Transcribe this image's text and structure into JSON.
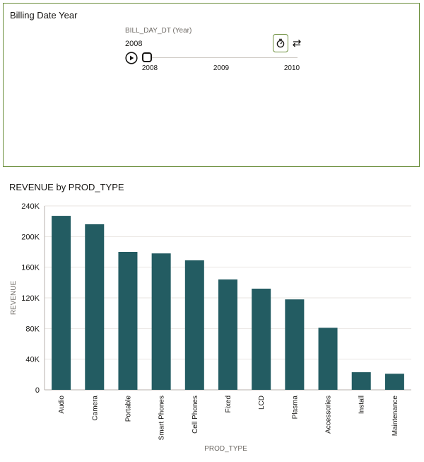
{
  "filter_panel": {
    "title": "Billing Date Year",
    "slider_label": "BILL_DAY_DT (Year)",
    "current_value": "2008",
    "ticks": [
      "2008",
      "2009",
      "2010"
    ],
    "selected_fraction": 0
  },
  "chart_title": "REVENUE by PROD_TYPE",
  "chart_data": {
    "type": "bar",
    "title": "REVENUE by PROD_TYPE",
    "xlabel": "PROD_TYPE",
    "ylabel": "REVENUE",
    "categories": [
      "Audio",
      "Camera",
      "Portable",
      "Smart Phones",
      "Cell Phones",
      "Fixed",
      "LCD",
      "Plasma",
      "Accessories",
      "Install",
      "Maintenance"
    ],
    "values": [
      227000,
      216000,
      180000,
      178000,
      169000,
      144000,
      132000,
      118000,
      81000,
      23000,
      21000
    ],
    "ylim": [
      0,
      240000
    ],
    "yticks": [
      {
        "value": 0,
        "label": "0"
      },
      {
        "value": 40000,
        "label": "40K"
      },
      {
        "value": 80000,
        "label": "80K"
      },
      {
        "value": 120000,
        "label": "120K"
      },
      {
        "value": 160000,
        "label": "160K"
      },
      {
        "value": 200000,
        "label": "200K"
      },
      {
        "value": 240000,
        "label": "240K"
      }
    ],
    "grid": true,
    "bar_color": "#235c62"
  },
  "colors": {
    "panel_border": "#6b8e3b",
    "bar": "#235c62"
  },
  "icons": {
    "play": "play-icon",
    "timer": "timer-icon",
    "loop": "loop-icon"
  }
}
